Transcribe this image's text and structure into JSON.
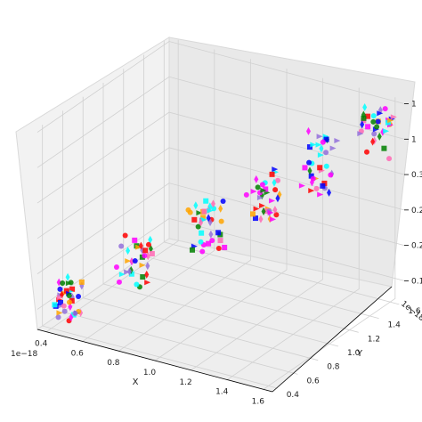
{
  "chart_data": {
    "type": "scatter",
    "projection": "3d",
    "title": "",
    "xlabel": "X",
    "ylabel": "Y",
    "zlabel": "",
    "x_offset_label": "1e−18",
    "y_offset_label": "1e−18",
    "x_ticks": [
      "0.4",
      "0.6",
      "0.8",
      "1.0",
      "1.2",
      "1.4",
      "1.6"
    ],
    "y_ticks": [
      "0.4",
      "0.6",
      "0.8",
      "1.0",
      "1.2",
      "1.4",
      "1.6"
    ],
    "z_ticks": [
      "0.1",
      "0.2",
      "0.2",
      "0.3",
      "1",
      "1"
    ],
    "xlim": [
      0.35,
      1.65
    ],
    "ylim": [
      0.35,
      1.65
    ],
    "zlim": [
      0,
      1
    ],
    "grid": true,
    "legend": "none",
    "marker_colors": [
      "#ff00ff",
      "#ff0000",
      "#0000ff",
      "#008000",
      "#ff69b4",
      "#00ffff",
      "#ffa500",
      "#9370db"
    ],
    "clusters": [
      {
        "x": 0.45,
        "y": 0.45,
        "z_range": [
          0.05,
          0.22
        ],
        "count": 38
      },
      {
        "x": 0.7,
        "y": 0.7,
        "z_range": [
          0.18,
          0.42
        ],
        "count": 34
      },
      {
        "x": 0.95,
        "y": 0.95,
        "z_range": [
          0.32,
          0.58
        ],
        "count": 38
      },
      {
        "x": 1.15,
        "y": 1.15,
        "z_range": [
          0.45,
          0.72
        ],
        "count": 36
      },
      {
        "x": 1.35,
        "y": 1.35,
        "z_range": [
          0.58,
          0.88
        ],
        "count": 36
      },
      {
        "x": 1.55,
        "y": 1.55,
        "z_range": [
          0.72,
          0.98
        ],
        "count": 34
      }
    ]
  }
}
